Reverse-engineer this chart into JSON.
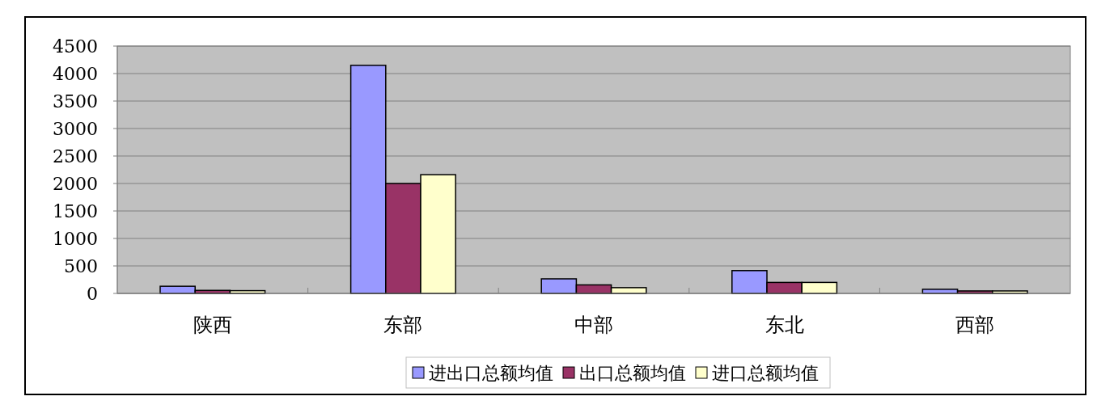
{
  "chart_data": {
    "type": "bar",
    "categories": [
      "陕西",
      "东部",
      "中部",
      "东北",
      "西部"
    ],
    "series": [
      {
        "name": "进出口总额均值",
        "color": "#9999ff",
        "values": [
          130,
          4150,
          265,
          415,
          75
        ]
      },
      {
        "name": "出口总额均值",
        "color": "#993366",
        "values": [
          55,
          2000,
          155,
          200,
          45
        ]
      },
      {
        "name": "进口总额均值",
        "color": "#ffffcc",
        "values": [
          50,
          2160,
          105,
          200,
          45
        ]
      }
    ],
    "ylim": [
      0,
      4500
    ],
    "yticks": [
      0,
      500,
      1000,
      1500,
      2000,
      2500,
      3000,
      3500,
      4000,
      4500
    ],
    "grid": "y",
    "legend": "bottom"
  }
}
